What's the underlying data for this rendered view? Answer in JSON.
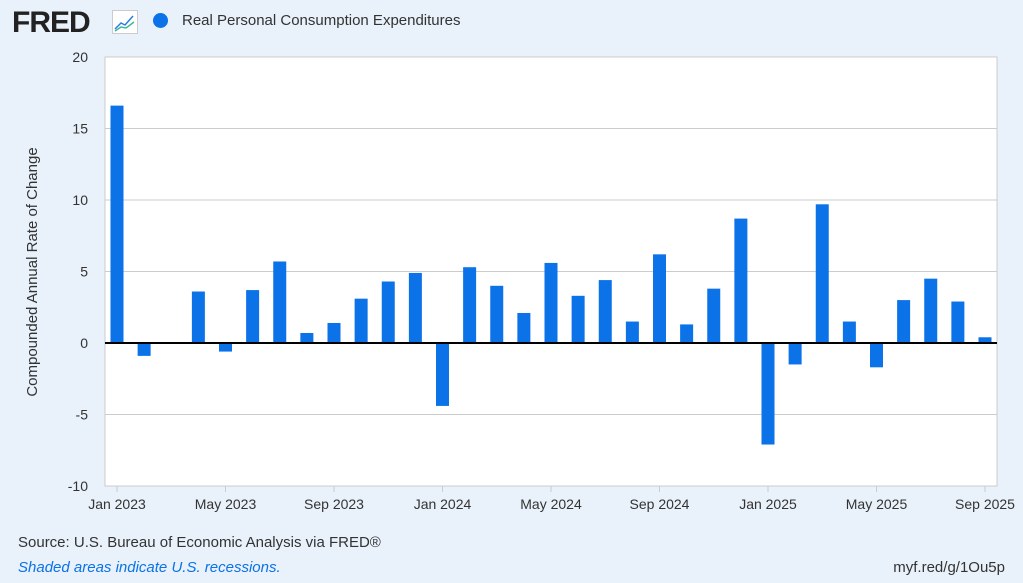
{
  "header": {
    "logo": "FRED",
    "series_name": "Real Personal Consumption Expenditures"
  },
  "footer": {
    "source": "Source: U.S. Bureau of Economic Analysis via FRED®",
    "recessions": "Shaded areas indicate U.S. recessions.",
    "short_url": "myf.red/g/1Ou5p"
  },
  "colors": {
    "bar": "#0b72e7"
  },
  "chart_data": {
    "type": "bar",
    "title": "Real Personal Consumption Expenditures",
    "ylabel": "Compounded Annual Rate of Change",
    "xlabel": "",
    "ylim": [
      -10,
      20
    ],
    "yticks": [
      -10,
      -5,
      0,
      5,
      10,
      15,
      20
    ],
    "xtick_labels": [
      "Jan 2023",
      "May 2023",
      "Sep 2023",
      "Jan 2024",
      "May 2024",
      "Sep 2024",
      "Jan 2025",
      "May 2025",
      "Sep 2025"
    ],
    "categories": [
      "2023-01",
      "2023-02",
      "2023-03",
      "2023-04",
      "2023-05",
      "2023-06",
      "2023-07",
      "2023-08",
      "2023-09",
      "2023-10",
      "2023-11",
      "2023-12",
      "2024-01",
      "2024-02",
      "2024-03",
      "2024-04",
      "2024-05",
      "2024-06",
      "2024-07",
      "2024-08",
      "2024-09",
      "2024-10",
      "2024-11",
      "2024-12",
      "2025-01",
      "2025-02",
      "2025-03",
      "2025-04",
      "2025-05",
      "2025-06",
      "2025-07",
      "2025-08",
      "2025-09"
    ],
    "values": [
      16.6,
      -0.9,
      0.0,
      3.6,
      -0.6,
      3.7,
      5.7,
      0.7,
      1.4,
      3.1,
      4.3,
      4.9,
      -4.4,
      5.3,
      4.0,
      2.1,
      5.6,
      3.3,
      4.4,
      1.5,
      6.2,
      1.3,
      3.8,
      8.7,
      -7.1,
      -1.5,
      9.7,
      1.5,
      -1.7,
      3.0,
      4.5,
      2.9,
      0.4
    ]
  }
}
